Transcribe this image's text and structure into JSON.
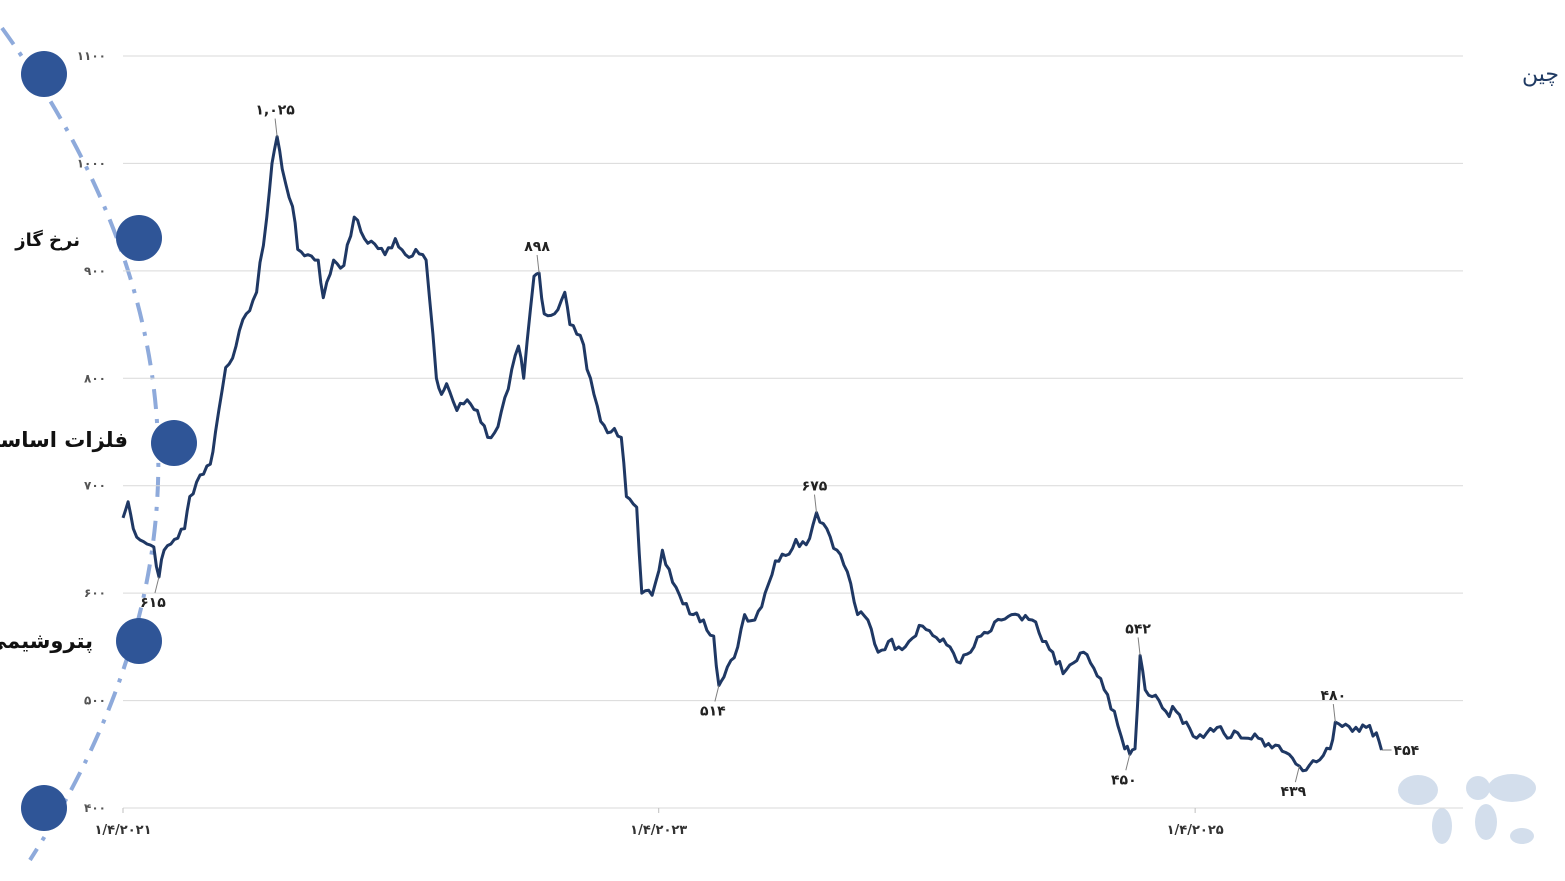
{
  "nav": {
    "items": [
      {
        "label": "نرخ گاز"
      },
      {
        "label": "فلزات اساسی"
      },
      {
        "label": "پتروشیمی"
      }
    ],
    "accent": "#2f5597",
    "arc_color": "#8eaadb"
  },
  "chart_data": {
    "type": "line",
    "title": "ورق گرم فولاد – FOB چین",
    "xlabel": "",
    "ylabel": "",
    "ylim": [
      400,
      1100
    ],
    "yticks": [
      {
        "value": 400,
        "label": "۴۰۰"
      },
      {
        "value": 500,
        "label": "۵۰۰"
      },
      {
        "value": 600,
        "label": "۶۰۰"
      },
      {
        "value": 700,
        "label": "۷۰۰"
      },
      {
        "value": 800,
        "label": "۸۰۰"
      },
      {
        "value": 900,
        "label": "۹۰۰"
      },
      {
        "value": 1000,
        "label": "۱۰۰۰"
      },
      {
        "value": 1100,
        "label": "۱۱۰۰"
      }
    ],
    "xlim": [
      "2021-01-04",
      "2026-01-04"
    ],
    "xticks": [
      {
        "value": "2021-01-04",
        "label": "۱/۴/۲۰۲۱"
      },
      {
        "value": "2023-01-04",
        "label": "۱/۴/۲۰۲۳"
      },
      {
        "value": "2025-01-04",
        "label": "۱/۴/۲۰۲۵"
      }
    ],
    "grid": true,
    "line_color": "#1f3864",
    "series": [
      {
        "points": [
          [
            "2021-01-04",
            670
          ],
          [
            "2021-01-11",
            685
          ],
          [
            "2021-01-18",
            660
          ],
          [
            "2021-02-01",
            648
          ],
          [
            "2021-02-15",
            643
          ],
          [
            "2021-02-22",
            615
          ],
          [
            "2021-03-01",
            640
          ],
          [
            "2021-03-15",
            650
          ],
          [
            "2021-03-29",
            660
          ],
          [
            "2021-04-05",
            690
          ],
          [
            "2021-04-19",
            710
          ],
          [
            "2021-05-03",
            720
          ],
          [
            "2021-05-10",
            750
          ],
          [
            "2021-05-24",
            810
          ],
          [
            "2021-06-07",
            830
          ],
          [
            "2021-06-21",
            860
          ],
          [
            "2021-07-05",
            880
          ],
          [
            "2021-07-19",
            950
          ],
          [
            "2021-07-26",
            1000
          ],
          [
            "2021-08-02",
            1025
          ],
          [
            "2021-08-09",
            995
          ],
          [
            "2021-08-23",
            960
          ],
          [
            "2021-08-30",
            920
          ],
          [
            "2021-09-13",
            915
          ],
          [
            "2021-09-27",
            910
          ],
          [
            "2021-10-04",
            875
          ],
          [
            "2021-10-18",
            910
          ],
          [
            "2021-11-01",
            905
          ],
          [
            "2021-11-15",
            950
          ],
          [
            "2021-11-29",
            930
          ],
          [
            "2021-12-13",
            925
          ],
          [
            "2021-12-27",
            915
          ],
          [
            "2022-01-10",
            930
          ],
          [
            "2022-01-24",
            915
          ],
          [
            "2022-02-07",
            920
          ],
          [
            "2022-02-21",
            910
          ],
          [
            "2022-03-07",
            800
          ],
          [
            "2022-03-14",
            785
          ],
          [
            "2022-03-21",
            795
          ],
          [
            "2022-04-04",
            770
          ],
          [
            "2022-04-18",
            780
          ],
          [
            "2022-05-02",
            770
          ],
          [
            "2022-05-16",
            745
          ],
          [
            "2022-05-30",
            755
          ],
          [
            "2022-06-13",
            790
          ],
          [
            "2022-06-27",
            830
          ],
          [
            "2022-07-04",
            800
          ],
          [
            "2022-07-18",
            895
          ],
          [
            "2022-07-25",
            898
          ],
          [
            "2022-08-01",
            860
          ],
          [
            "2022-08-15",
            860
          ],
          [
            "2022-08-29",
            880
          ],
          [
            "2022-09-05",
            850
          ],
          [
            "2022-09-19",
            840
          ],
          [
            "2022-10-03",
            800
          ],
          [
            "2022-10-17",
            760
          ],
          [
            "2022-10-31",
            750
          ],
          [
            "2022-11-14",
            745
          ],
          [
            "2022-11-21",
            690
          ],
          [
            "2022-12-05",
            680
          ],
          [
            "2022-12-12",
            600
          ],
          [
            "2022-12-26",
            598
          ],
          [
            "2023-01-09",
            640
          ],
          [
            "2023-01-23",
            610
          ],
          [
            "2023-02-06",
            590
          ],
          [
            "2023-02-20",
            580
          ],
          [
            "2023-03-06",
            575
          ],
          [
            "2023-03-20",
            560
          ],
          [
            "2023-03-27",
            514
          ],
          [
            "2023-04-03",
            522
          ],
          [
            "2023-04-17",
            540
          ],
          [
            "2023-05-01",
            580
          ],
          [
            "2023-05-15",
            575
          ],
          [
            "2023-05-29",
            600
          ],
          [
            "2023-06-12",
            630
          ],
          [
            "2023-06-26",
            635
          ],
          [
            "2023-07-10",
            650
          ],
          [
            "2023-07-24",
            645
          ],
          [
            "2023-08-07",
            675
          ],
          [
            "2023-08-21",
            660
          ],
          [
            "2023-09-04",
            640
          ],
          [
            "2023-09-18",
            620
          ],
          [
            "2023-10-02",
            580
          ],
          [
            "2023-10-16",
            575
          ],
          [
            "2023-10-30",
            545
          ],
          [
            "2023-11-13",
            555
          ],
          [
            "2023-11-27",
            550
          ],
          [
            "2023-12-11",
            555
          ],
          [
            "2023-12-25",
            570
          ],
          [
            "2024-01-08",
            565
          ],
          [
            "2024-01-22",
            555
          ],
          [
            "2024-02-05",
            550
          ],
          [
            "2024-02-19",
            535
          ],
          [
            "2024-03-04",
            545
          ],
          [
            "2024-03-18",
            560
          ],
          [
            "2024-04-01",
            565
          ],
          [
            "2024-04-15",
            575
          ],
          [
            "2024-04-29",
            580
          ],
          [
            "2024-05-13",
            575
          ],
          [
            "2024-05-27",
            575
          ],
          [
            "2024-06-10",
            555
          ],
          [
            "2024-06-24",
            545
          ],
          [
            "2024-07-08",
            525
          ],
          [
            "2024-07-22",
            535
          ],
          [
            "2024-08-05",
            545
          ],
          [
            "2024-08-19",
            530
          ],
          [
            "2024-09-02",
            510
          ],
          [
            "2024-09-16",
            490
          ],
          [
            "2024-09-30",
            455
          ],
          [
            "2024-10-07",
            450
          ],
          [
            "2024-10-14",
            455
          ],
          [
            "2024-10-21",
            542
          ],
          [
            "2024-10-28",
            510
          ],
          [
            "2024-11-11",
            505
          ],
          [
            "2024-11-25",
            490
          ],
          [
            "2024-12-09",
            490
          ],
          [
            "2024-12-23",
            480
          ],
          [
            "2025-01-06",
            465
          ],
          [
            "2025-01-20",
            470
          ],
          [
            "2025-02-03",
            475
          ],
          [
            "2025-02-17",
            465
          ],
          [
            "2025-03-03",
            470
          ],
          [
            "2025-03-17",
            465
          ],
          [
            "2025-03-31",
            465
          ],
          [
            "2025-04-14",
            460
          ],
          [
            "2025-04-28",
            458
          ],
          [
            "2025-05-12",
            450
          ],
          [
            "2025-05-26",
            439
          ],
          [
            "2025-06-09",
            440
          ],
          [
            "2025-06-23",
            445
          ],
          [
            "2025-07-07",
            455
          ],
          [
            "2025-07-14",
            480
          ],
          [
            "2025-07-28",
            478
          ],
          [
            "2025-08-11",
            475
          ],
          [
            "2025-08-25",
            475
          ],
          [
            "2025-09-08",
            470
          ],
          [
            "2025-09-15",
            454
          ]
        ]
      }
    ],
    "annotations": [
      {
        "label": "۱,۰۲۵",
        "x": "2021-08-02",
        "y": 1025,
        "pos": "above"
      },
      {
        "label": "۸۹۸",
        "x": "2022-07-25",
        "y": 898,
        "pos": "above"
      },
      {
        "label": "۶۱۵",
        "x": "2021-02-22",
        "y": 615,
        "pos": "below"
      },
      {
        "label": "۵۱۴",
        "x": "2023-03-27",
        "y": 514,
        "pos": "below"
      },
      {
        "label": "۶۷۵",
        "x": "2023-08-07",
        "y": 675,
        "pos": "above"
      },
      {
        "label": "۵۴۲",
        "x": "2024-10-21",
        "y": 542,
        "pos": "above"
      },
      {
        "label": "۴۵۰",
        "x": "2024-10-07",
        "y": 450,
        "pos": "below"
      },
      {
        "label": "۴۳۹",
        "x": "2025-05-26",
        "y": 439,
        "pos": "below"
      },
      {
        "label": "۴۸۰",
        "x": "2025-07-14",
        "y": 480,
        "pos": "above"
      },
      {
        "label": "۴۵۴",
        "x": "2025-09-15",
        "y": 454,
        "pos": "right"
      }
    ]
  }
}
